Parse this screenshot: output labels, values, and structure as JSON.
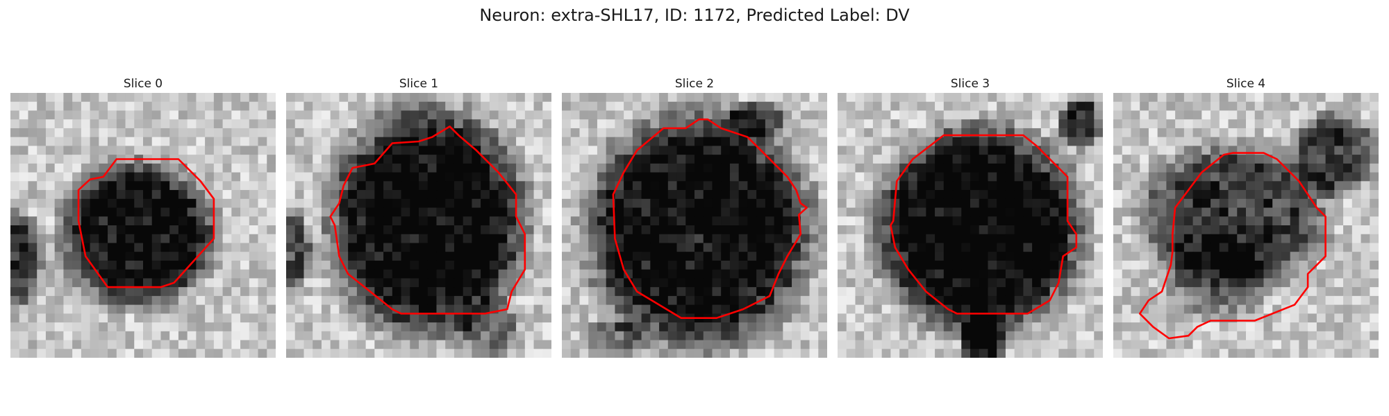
{
  "figure": {
    "title": "Neuron: extra-SHL17, ID: 1172, Predicted Label: DV"
  },
  "colors": {
    "contour": "#ff0000",
    "background": "#ffffff"
  },
  "panels": [
    {
      "title": "Slice 0",
      "seed": 11
    },
    {
      "title": "Slice 1",
      "seed": 23
    },
    {
      "title": "Slice 2",
      "seed": 37
    },
    {
      "title": "Slice 3",
      "seed": 51
    },
    {
      "title": "Slice 4",
      "seed": 67
    }
  ]
}
